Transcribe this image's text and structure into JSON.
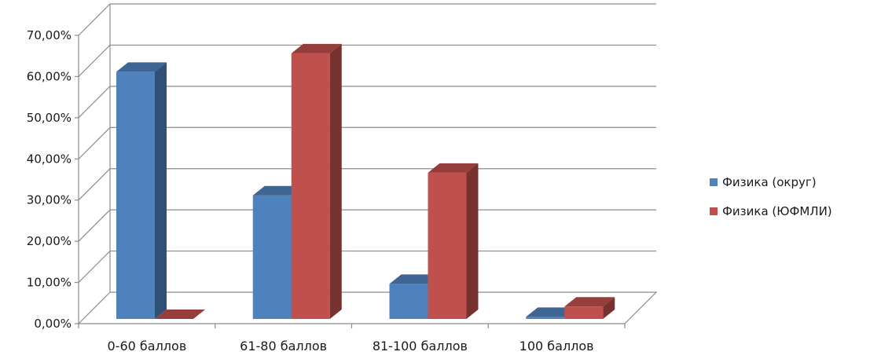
{
  "chart_data": {
    "type": "bar",
    "title": "",
    "xlabel": "",
    "ylabel": "",
    "categories": [
      "0-60 баллов",
      "61-80 баллов",
      "81-100 баллов",
      "100 баллов"
    ],
    "series": [
      {
        "name": "Физика (округ)",
        "color": "#4F81BD",
        "values": [
          60,
          30,
          8.5,
          0.5
        ]
      },
      {
        "name": "Физика (ЮФМЛИ)",
        "color": "#C0504D",
        "values": [
          0,
          64.5,
          35.5,
          3
        ]
      }
    ],
    "ylim": [
      0,
      70
    ],
    "yticks": [
      "0,00%",
      "10,00%",
      "20,00%",
      "30,00%",
      "40,00%",
      "50,00%",
      "60,00%",
      "70,00%"
    ],
    "gridlines": true,
    "perspective": "3d",
    "legend_position": "right"
  }
}
